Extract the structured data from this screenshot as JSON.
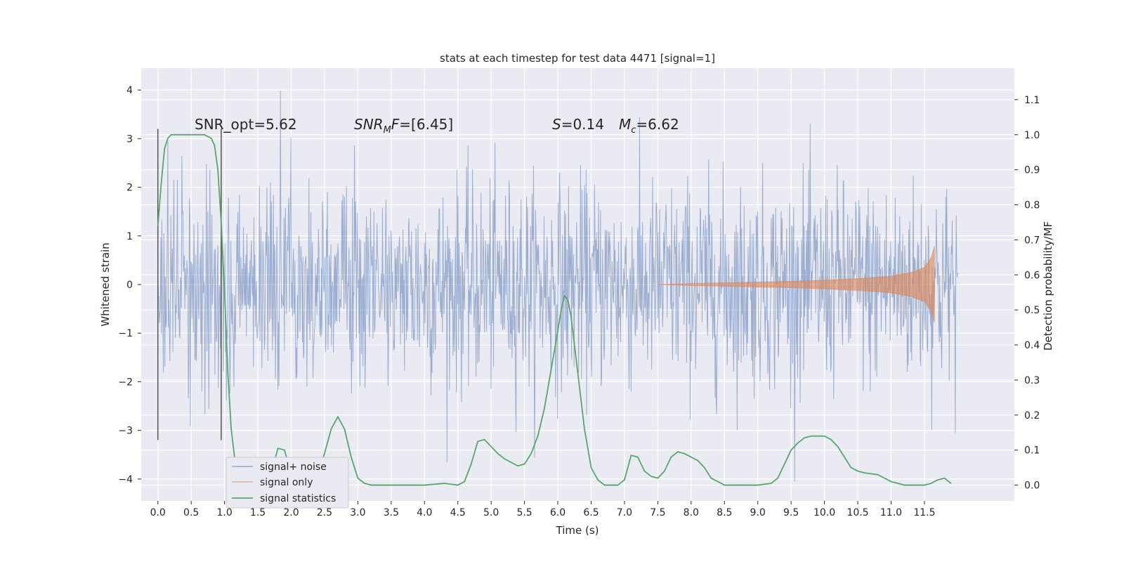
{
  "chart_data": {
    "type": "line",
    "title": "stats at each timestep for test data 4471 [signal=1]",
    "xlabel": "Time (s)",
    "ylabel": "Whitened strain",
    "y2label": "Detection probability/MF",
    "xlim": [
      -0.25,
      12.85
    ],
    "ylim": [
      -4.45,
      4.45
    ],
    "y2lim": [
      -0.045,
      1.19
    ],
    "grid": true,
    "legend_location": "lower-left",
    "x_ticks": [
      "0.0",
      "0.5",
      "1.0",
      "1.5",
      "2.0",
      "2.5",
      "3.0",
      "3.5",
      "4.0",
      "4.5",
      "5.0",
      "5.5",
      "6.0",
      "6.5",
      "7.0",
      "7.5",
      "8.0",
      "8.5",
      "9.0",
      "9.5",
      "10.0",
      "10.5",
      "11.0",
      "11.5"
    ],
    "y_ticks": [
      "4",
      "3",
      "2",
      "1",
      "0",
      "−1",
      "−2",
      "−3",
      "−4"
    ],
    "y2_ticks": [
      "1.1",
      "1.0",
      "0.9",
      "0.8",
      "0.7",
      "0.6",
      "0.5",
      "0.4",
      "0.3",
      "0.2",
      "0.1",
      "0.0"
    ],
    "annotations": {
      "snr_opt": "SNR_opt=5.62",
      "snr_mf_sym": "SNR",
      "snr_mf_sub": "M",
      "snr_mf_sym2": "F",
      "snr_mf_val": "=[6.45]",
      "s_sym": "S",
      "s_val": "=0.14",
      "mc_sym": "M",
      "mc_sub": "c",
      "mc_val": "=6.62"
    },
    "vlines": [
      0.0,
      0.95
    ],
    "series": [
      {
        "name": "signal+ noise",
        "color": "#4c72b0",
        "axis": "left",
        "style": "dense white noise, approx. ±1.3 typical, extremes to about ±4",
        "x_range": [
          0.0,
          12.0
        ]
      },
      {
        "name": "signal only",
        "color": "#dd8452",
        "axis": "left",
        "style": "chirp, amplitude grows from ~0 at 7.5 s to ~0.75 at 11.65 s",
        "x_range": [
          7.5,
          11.65
        ],
        "envelope": [
          [
            7.5,
            0.0
          ],
          [
            8.0,
            0.02
          ],
          [
            8.5,
            0.035
          ],
          [
            9.0,
            0.05
          ],
          [
            9.5,
            0.065
          ],
          [
            10.0,
            0.09
          ],
          [
            10.5,
            0.12
          ],
          [
            11.0,
            0.17
          ],
          [
            11.3,
            0.25
          ],
          [
            11.5,
            0.35
          ],
          [
            11.6,
            0.55
          ],
          [
            11.65,
            0.78
          ]
        ]
      },
      {
        "name": "signal statistics",
        "color": "#55a868",
        "axis": "right",
        "x": [
          0.0,
          0.05,
          0.1,
          0.15,
          0.2,
          0.3,
          0.4,
          0.5,
          0.6,
          0.7,
          0.8,
          0.85,
          0.9,
          0.95,
          1.0,
          1.05,
          1.1,
          1.15,
          1.2,
          1.3,
          1.4,
          1.5,
          1.6,
          1.7,
          1.8,
          1.9,
          2.0,
          2.05,
          2.1,
          2.2,
          2.3,
          2.4,
          2.5,
          2.6,
          2.7,
          2.8,
          2.9,
          3.0,
          3.1,
          3.2,
          3.5,
          4.0,
          4.3,
          4.5,
          4.6,
          4.7,
          4.8,
          4.9,
          5.0,
          5.1,
          5.2,
          5.3,
          5.4,
          5.5,
          5.6,
          5.7,
          5.8,
          5.9,
          6.0,
          6.05,
          6.1,
          6.15,
          6.2,
          6.3,
          6.4,
          6.5,
          6.6,
          6.7,
          6.8,
          6.9,
          7.0,
          7.1,
          7.2,
          7.3,
          7.4,
          7.5,
          7.6,
          7.7,
          7.8,
          7.9,
          8.0,
          8.1,
          8.2,
          8.3,
          8.5,
          8.8,
          9.0,
          9.2,
          9.3,
          9.4,
          9.5,
          9.6,
          9.7,
          9.8,
          9.9,
          10.0,
          10.1,
          10.2,
          10.3,
          10.4,
          10.5,
          10.6,
          10.8,
          11.0,
          11.2,
          11.5,
          11.6,
          11.7,
          11.8,
          11.9
        ],
        "values": [
          0.74,
          0.86,
          0.96,
          0.99,
          1.0,
          1.0,
          1.0,
          1.0,
          1.0,
          1.0,
          0.99,
          0.97,
          0.9,
          0.75,
          0.55,
          0.32,
          0.16,
          0.08,
          0.06,
          0.04,
          0.02,
          0.01,
          0.01,
          0.03,
          0.105,
          0.1,
          0.03,
          0.015,
          0.005,
          0.0,
          0.005,
          0.03,
          0.09,
          0.16,
          0.195,
          0.16,
          0.08,
          0.02,
          0.005,
          0.0,
          0.0,
          0.0,
          0.005,
          0.0,
          0.01,
          0.06,
          0.125,
          0.13,
          0.11,
          0.09,
          0.075,
          0.065,
          0.055,
          0.06,
          0.09,
          0.14,
          0.22,
          0.33,
          0.44,
          0.5,
          0.54,
          0.53,
          0.48,
          0.32,
          0.16,
          0.05,
          0.015,
          0.0,
          0.0,
          0.0,
          0.015,
          0.085,
          0.08,
          0.04,
          0.025,
          0.02,
          0.04,
          0.08,
          0.095,
          0.09,
          0.08,
          0.07,
          0.05,
          0.02,
          0.0,
          0.0,
          0.0,
          0.005,
          0.02,
          0.06,
          0.1,
          0.12,
          0.135,
          0.14,
          0.14,
          0.14,
          0.13,
          0.11,
          0.08,
          0.05,
          0.04,
          0.035,
          0.03,
          0.01,
          0.0,
          0.0,
          0.005,
          0.015,
          0.02,
          0.005
        ]
      }
    ]
  }
}
